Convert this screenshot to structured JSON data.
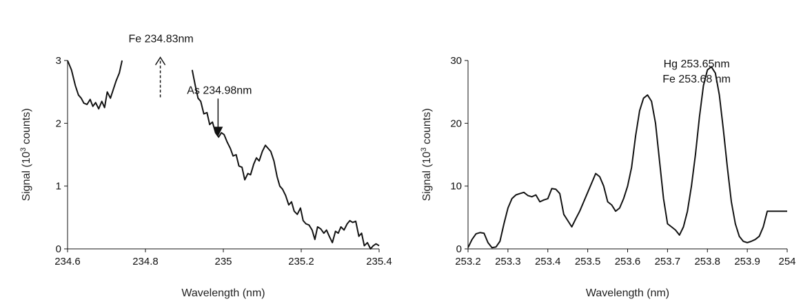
{
  "chart_data": [
    {
      "type": "line",
      "xlabel": "Wavelength (nm)",
      "ylabel": "Signal (10",
      "ylabel_sup": "3",
      "ylabel_tail": " counts)",
      "xlim": [
        234.6,
        235.4
      ],
      "ylim": [
        0,
        3
      ],
      "xticks": [
        234.6,
        234.8,
        235,
        235.2,
        235.4
      ],
      "xtick_labels": [
        "234.6",
        "234.8",
        "235",
        "235.2",
        "235.4"
      ],
      "yticks": [
        0,
        1,
        2,
        3
      ],
      "ytick_labels": [
        "0",
        "1",
        "2",
        "3"
      ],
      "grid": false,
      "segments": [
        {
          "x": [
            234.6,
            234.61,
            234.62,
            234.628,
            234.635,
            234.642,
            234.65,
            234.658,
            234.665,
            234.672,
            234.68,
            234.688,
            234.695,
            234.702,
            234.71,
            234.718,
            234.725,
            234.733,
            234.74
          ],
          "y": [
            3.0,
            2.85,
            2.6,
            2.45,
            2.4,
            2.32,
            2.3,
            2.38,
            2.27,
            2.33,
            2.23,
            2.35,
            2.25,
            2.5,
            2.4,
            2.55,
            2.68,
            2.8,
            3.0
          ]
        },
        {
          "x": [
            234.92,
            234.928,
            234.935,
            234.942,
            234.95,
            234.958,
            234.965,
            234.972,
            234.98,
            234.988,
            234.995,
            235.002,
            235.01,
            235.018,
            235.025,
            235.033,
            235.04,
            235.048,
            235.055,
            235.063,
            235.07,
            235.078,
            235.085,
            235.092,
            235.1,
            235.108,
            235.115,
            235.122,
            235.13,
            235.138,
            235.145,
            235.152,
            235.16,
            235.168,
            235.175,
            235.182,
            235.19,
            235.198,
            235.205,
            235.212,
            235.22,
            235.228,
            235.235,
            235.242,
            235.25,
            235.258,
            235.265,
            235.272,
            235.28,
            235.288,
            235.295,
            235.302,
            235.31,
            235.318,
            235.325,
            235.332,
            235.34,
            235.348,
            235.355,
            235.362,
            235.37,
            235.378,
            235.385,
            235.392,
            235.4
          ],
          "y": [
            2.85,
            2.6,
            2.4,
            2.35,
            2.15,
            2.17,
            1.98,
            2.02,
            1.85,
            1.78,
            1.85,
            1.82,
            1.7,
            1.6,
            1.48,
            1.5,
            1.32,
            1.3,
            1.1,
            1.2,
            1.18,
            1.35,
            1.45,
            1.4,
            1.55,
            1.65,
            1.6,
            1.55,
            1.4,
            1.15,
            1.0,
            0.95,
            0.85,
            0.7,
            0.75,
            0.6,
            0.55,
            0.65,
            0.45,
            0.4,
            0.38,
            0.3,
            0.15,
            0.35,
            0.32,
            0.25,
            0.3,
            0.2,
            0.1,
            0.28,
            0.25,
            0.35,
            0.3,
            0.4,
            0.45,
            0.42,
            0.44,
            0.2,
            0.25,
            0.05,
            0.1,
            0.0,
            0.05,
            0.08,
            0.05
          ]
        }
      ],
      "annotations": [
        {
          "text": "Fe 234.83nm",
          "x": 234.84,
          "y": 3.29,
          "arrow": "dashed-up"
        },
        {
          "text": "As 234.98nm",
          "x": 234.99,
          "y": 2.47,
          "arrow": "solid-down"
        }
      ]
    },
    {
      "type": "line",
      "xlabel": "Wavelength (nm)",
      "ylabel": "Signal (10",
      "ylabel_sup": "3",
      "ylabel_tail": " counts)",
      "xlim": [
        253.2,
        254
      ],
      "ylim": [
        0,
        30
      ],
      "xticks": [
        253.2,
        253.3,
        253.4,
        253.5,
        253.6,
        253.7,
        253.8,
        253.9,
        254
      ],
      "xtick_labels": [
        "253.2",
        "253.3",
        "253.4",
        "253.5",
        "253.6",
        "253.7",
        "253.8",
        "253.9",
        "254"
      ],
      "yticks": [
        0,
        10,
        20,
        30
      ],
      "ytick_labels": [
        "0",
        "10",
        "20",
        "30"
      ],
      "grid": false,
      "segments": [
        {
          "x": [
            253.2,
            253.21,
            253.22,
            253.23,
            253.24,
            253.25,
            253.26,
            253.27,
            253.28,
            253.29,
            253.3,
            253.31,
            253.32,
            253.33,
            253.34,
            253.35,
            253.36,
            253.37,
            253.38,
            253.39,
            253.4,
            253.41,
            253.42,
            253.43,
            253.44,
            253.45,
            253.46,
            253.47,
            253.48,
            253.49,
            253.5,
            253.51,
            253.52,
            253.53,
            253.54,
            253.55,
            253.56,
            253.57,
            253.58,
            253.59,
            253.6,
            253.61,
            253.62,
            253.63,
            253.64,
            253.65,
            253.66,
            253.67,
            253.68,
            253.69,
            253.7,
            253.71,
            253.72,
            253.73,
            253.74,
            253.75,
            253.76,
            253.77,
            253.78,
            253.79,
            253.8,
            253.81,
            253.82,
            253.83,
            253.84,
            253.85,
            253.86,
            253.87,
            253.88,
            253.89,
            253.9,
            253.91,
            253.92,
            253.93,
            253.94,
            253.95,
            253.96,
            253.97,
            253.98,
            253.99,
            254.0
          ],
          "y": [
            0.2,
            1.5,
            2.4,
            2.6,
            2.5,
            1.0,
            0.2,
            0.3,
            1.2,
            4.0,
            6.5,
            8.0,
            8.6,
            8.8,
            9.0,
            8.5,
            8.3,
            8.6,
            7.5,
            7.8,
            8.0,
            9.6,
            9.5,
            8.8,
            5.5,
            4.5,
            3.5,
            4.8,
            6.0,
            7.5,
            9.0,
            10.5,
            12.0,
            11.5,
            10.0,
            7.5,
            7.0,
            6.0,
            6.5,
            8.0,
            10.0,
            13.0,
            18.0,
            22.0,
            24.0,
            24.5,
            23.5,
            20.0,
            14.0,
            8.0,
            4.0,
            3.5,
            3.0,
            2.2,
            3.5,
            6.0,
            10.0,
            15.0,
            21.0,
            26.0,
            28.5,
            29.0,
            28.0,
            24.5,
            19.0,
            13.0,
            7.5,
            4.0,
            2.0,
            1.2,
            1.0,
            1.2,
            1.5,
            2.0,
            3.5,
            6.0,
            6.0,
            6.0,
            6.0,
            6.0,
            6.0
          ]
        }
      ],
      "annotations": [
        {
          "text": "Hg 253.65nm",
          "x": 253.773,
          "y": 28.9
        },
        {
          "text": "Fe 253.68 nm",
          "x": 253.773,
          "y": 26.5
        }
      ]
    }
  ]
}
